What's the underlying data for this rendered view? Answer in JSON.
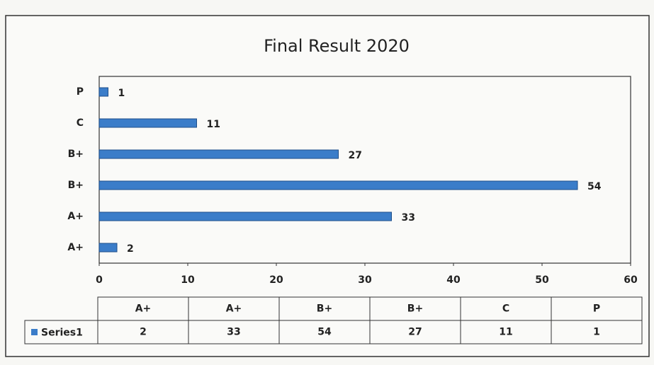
{
  "chart_data": {
    "type": "bar",
    "orientation": "horizontal",
    "title": "Final Result 2020",
    "categories": [
      "A+",
      "A+",
      "B+",
      "B+",
      "C",
      "P"
    ],
    "series": [
      {
        "name": "Series1",
        "color": "#3b7dc9",
        "values": [
          2,
          33,
          54,
          27,
          11,
          1
        ]
      }
    ],
    "xlim": [
      0,
      60
    ],
    "xticks": [
      0,
      10,
      20,
      30,
      40,
      50,
      60
    ],
    "data_table": true
  }
}
